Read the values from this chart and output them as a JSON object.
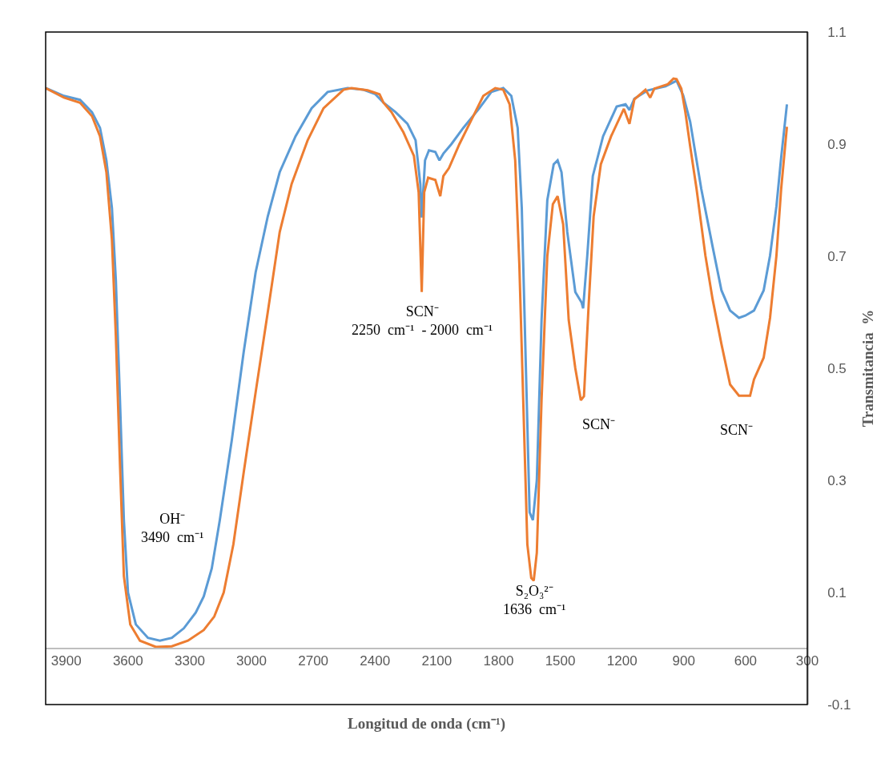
{
  "chart_data": {
    "type": "line",
    "xlabel": "Longitud de onda (cm⁻¹)",
    "ylabel": "Transmitancia  %",
    "xlim": [
      4000,
      300
    ],
    "xticks": [
      3900,
      3600,
      3300,
      3000,
      2700,
      2400,
      2100,
      1800,
      1500,
      1200,
      900,
      600,
      300
    ],
    "ylim": [
      -0.1,
      1.1
    ],
    "yticks": [
      -0.1,
      0.1,
      0.3,
      0.5,
      0.7,
      0.9,
      1.1
    ],
    "marker": "none",
    "line_style": "solid",
    "series": [
      {
        "color": "#5b9bd5",
        "x": [
          4000,
          3911,
          3833,
          3775,
          3736,
          3705,
          3678,
          3659,
          3639,
          3620,
          3600,
          3562,
          3503,
          3445,
          3387,
          3329,
          3271,
          3232,
          3193,
          3154,
          3096,
          3038,
          2980,
          2921,
          2863,
          2786,
          2708,
          2630,
          2533,
          2456,
          2398,
          2359,
          2300,
          2242,
          2203,
          2180,
          2173,
          2157,
          2138,
          2107,
          2087,
          2068,
          2029,
          1971,
          1893,
          1835,
          1777,
          1738,
          1707,
          1687,
          1668,
          1649,
          1633,
          1614,
          1591,
          1563,
          1532,
          1513,
          1494,
          1466,
          1427,
          1396,
          1389,
          1369,
          1342,
          1292,
          1226,
          1183,
          1164,
          1140,
          1074,
          989,
          935,
          903,
          869,
          815,
          760,
          717,
          675,
          632,
          601,
          559,
          512,
          481,
          450,
          427,
          399
        ],
        "values": [
          1.0,
          0.986,
          0.979,
          0.957,
          0.929,
          0.871,
          0.786,
          0.657,
          0.443,
          0.229,
          0.1,
          0.043,
          0.019,
          0.014,
          0.019,
          0.036,
          0.064,
          0.093,
          0.143,
          0.229,
          0.371,
          0.529,
          0.671,
          0.771,
          0.85,
          0.914,
          0.964,
          0.993,
          1.0,
          0.997,
          0.989,
          0.974,
          0.957,
          0.936,
          0.907,
          0.829,
          0.769,
          0.871,
          0.889,
          0.886,
          0.871,
          0.883,
          0.9,
          0.929,
          0.964,
          0.993,
          1.0,
          0.986,
          0.929,
          0.786,
          0.514,
          0.243,
          0.229,
          0.3,
          0.586,
          0.8,
          0.864,
          0.871,
          0.85,
          0.743,
          0.636,
          0.617,
          0.607,
          0.7,
          0.843,
          0.914,
          0.967,
          0.971,
          0.961,
          0.981,
          0.996,
          1.003,
          1.013,
          0.987,
          0.94,
          0.82,
          0.717,
          0.639,
          0.603,
          0.59,
          0.594,
          0.603,
          0.639,
          0.701,
          0.789,
          0.876,
          0.971
        ]
      },
      {
        "color": "#ed7d31",
        "x": [
          4000,
          3911,
          3833,
          3775,
          3736,
          3705,
          3678,
          3659,
          3639,
          3620,
          3589,
          3542,
          3465,
          3387,
          3309,
          3232,
          3181,
          3135,
          3088,
          3038,
          2980,
          2921,
          2863,
          2805,
          2727,
          2650,
          2553,
          2514,
          2436,
          2378,
          2359,
          2320,
          2262,
          2211,
          2188,
          2173,
          2161,
          2142,
          2107,
          2083,
          2068,
          2041,
          1990,
          1932,
          1874,
          1816,
          1777,
          1746,
          1719,
          1699,
          1680,
          1660,
          1641,
          1629,
          1614,
          1591,
          1563,
          1536,
          1513,
          1486,
          1459,
          1427,
          1400,
          1385,
          1362,
          1338,
          1303,
          1253,
          1191,
          1164,
          1140,
          1086,
          1063,
          1043,
          977,
          950,
          935,
          912,
          892,
          869,
          838,
          795,
          760,
          717,
          675,
          632,
          578,
          559,
          512,
          481,
          450,
          427,
          399
        ],
        "values": [
          1.0,
          0.983,
          0.974,
          0.95,
          0.914,
          0.85,
          0.729,
          0.557,
          0.329,
          0.129,
          0.043,
          0.014,
          0.003,
          0.004,
          0.014,
          0.033,
          0.057,
          0.1,
          0.186,
          0.314,
          0.457,
          0.6,
          0.743,
          0.829,
          0.907,
          0.964,
          0.997,
          1.0,
          0.996,
          0.989,
          0.974,
          0.957,
          0.921,
          0.879,
          0.814,
          0.636,
          0.814,
          0.84,
          0.836,
          0.807,
          0.843,
          0.857,
          0.9,
          0.943,
          0.986,
          1.0,
          0.997,
          0.971,
          0.871,
          0.686,
          0.443,
          0.186,
          0.126,
          0.121,
          0.171,
          0.443,
          0.7,
          0.793,
          0.807,
          0.757,
          0.586,
          0.5,
          0.443,
          0.45,
          0.614,
          0.771,
          0.864,
          0.914,
          0.963,
          0.936,
          0.98,
          0.997,
          0.983,
          0.999,
          1.007,
          1.017,
          1.016,
          0.999,
          0.956,
          0.896,
          0.82,
          0.701,
          0.623,
          0.543,
          0.471,
          0.451,
          0.451,
          0.48,
          0.519,
          0.59,
          0.701,
          0.82,
          0.931
        ]
      }
    ],
    "annotations": [
      "OH⁻\n3490  cm⁻¹",
      "SCN⁻\n2250  cm⁻¹  - 2000  cm⁻¹",
      "S₂O₃²⁻\n1636  cm⁻¹",
      "SCN⁻",
      "SCN⁻"
    ]
  }
}
